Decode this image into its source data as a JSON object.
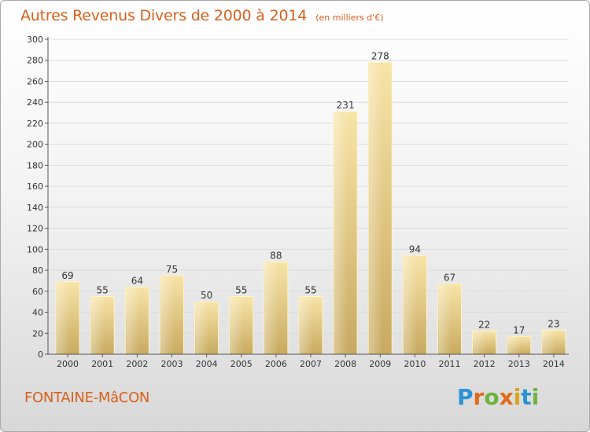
{
  "header": {
    "title": "Autres Revenus Divers de 2000 à 2014",
    "unit": "(en milliers d'€)"
  },
  "footer": {
    "commune": "FONTAINE-MâCON",
    "logo": "Proxiti",
    "logo_letters": [
      "P",
      "r",
      "o",
      "x",
      "i",
      "t",
      "i"
    ]
  },
  "colors": {
    "title": "#d9601c",
    "bar_light": "#f7e2a4",
    "bar_dark": "#c9ab62",
    "logo_blue": "#2a93d5",
    "logo_orange": "#e06b1c",
    "logo_green": "#6cb33e",
    "logo_yellow": "#d9a21b"
  },
  "chart_data": {
    "type": "bar",
    "title": "Autres Revenus Divers de 2000 à 2014",
    "subtitle": "(en milliers d'€)",
    "xlabel": "",
    "ylabel": "",
    "categories": [
      "2000",
      "2001",
      "2002",
      "2003",
      "2004",
      "2005",
      "2006",
      "2007",
      "2008",
      "2009",
      "2010",
      "2011",
      "2012",
      "2013",
      "2014"
    ],
    "values": [
      69,
      55,
      64,
      75,
      50,
      55,
      88,
      55,
      231,
      278,
      94,
      67,
      22,
      17,
      23
    ],
    "data_labels": [
      "69",
      "55",
      "64",
      "75",
      "50",
      "55",
      "88",
      "55",
      "231",
      "278",
      "94",
      "67",
      "22",
      "17",
      "23"
    ],
    "ylim": [
      0,
      300
    ],
    "yticks": [
      0,
      20,
      40,
      60,
      80,
      100,
      120,
      140,
      160,
      180,
      200,
      220,
      240,
      260,
      280,
      300
    ],
    "ytick_labels": [
      "0",
      "20",
      "40",
      "60",
      "80",
      "100",
      "120",
      "140",
      "160",
      "180",
      "200",
      "220",
      "240",
      "260",
      "280",
      "300"
    ],
    "grid": true,
    "legend": "none"
  }
}
